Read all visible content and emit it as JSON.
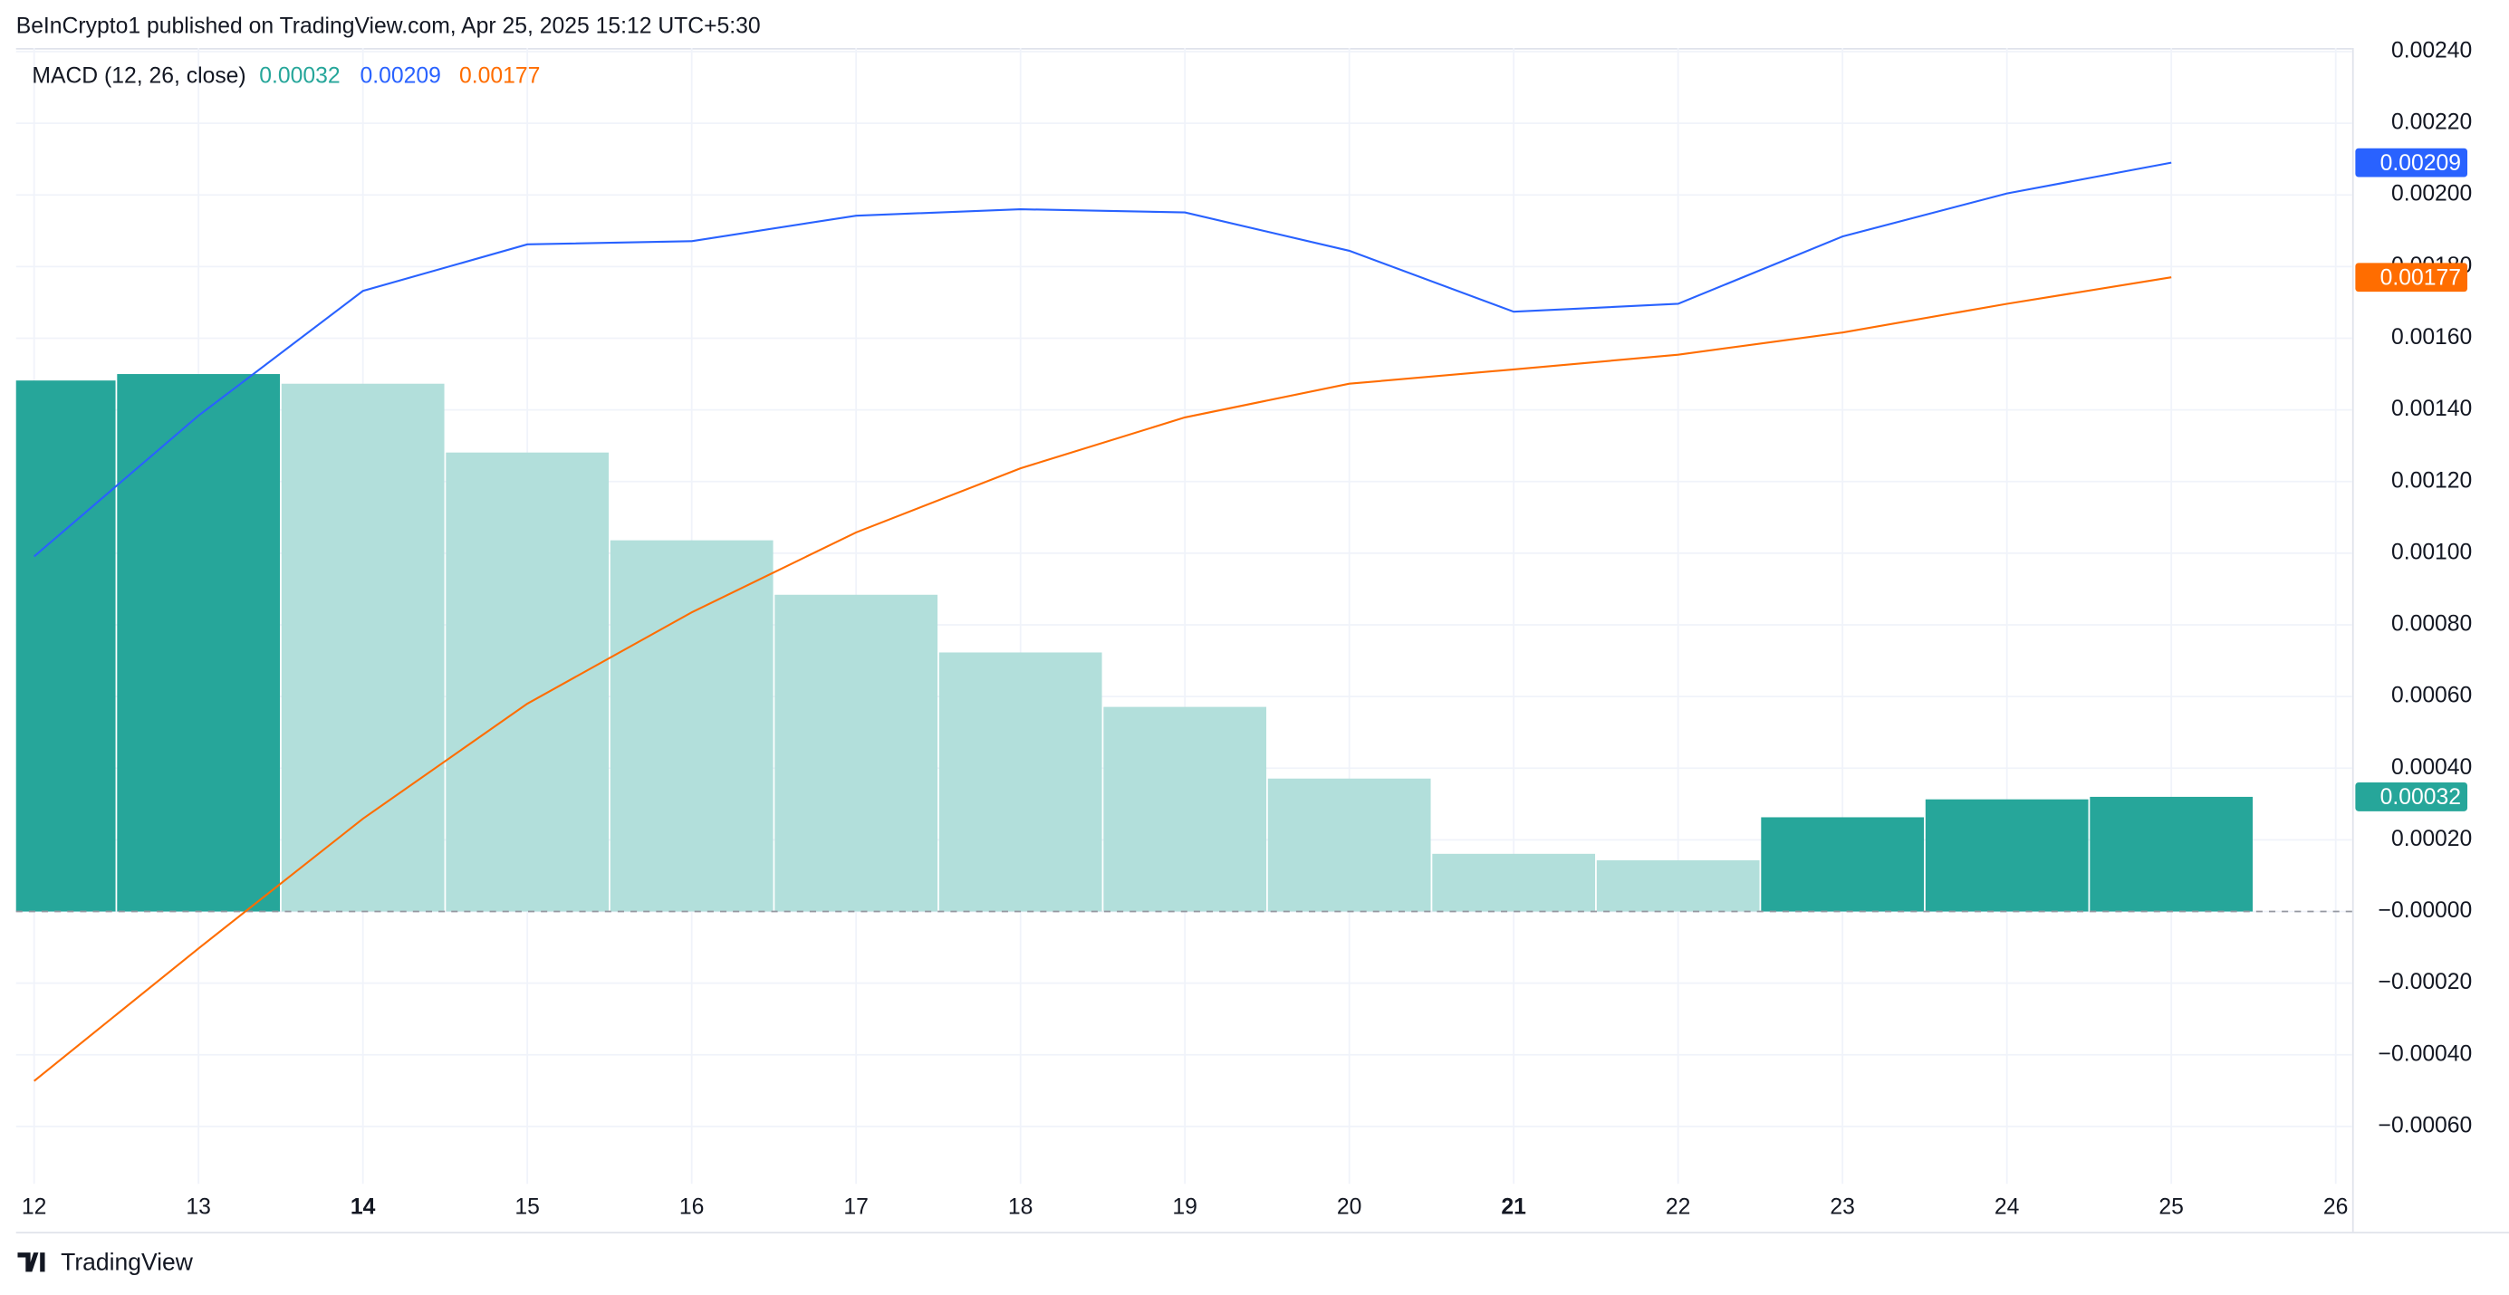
{
  "chart_data": {
    "type": "macd",
    "header": "BeInCrypto1 published on TradingView.com, Apr 25, 2025 15:12 UTC+5:30",
    "title": "MACD (12, 26, close)",
    "brand": "TradingView",
    "x": [
      12,
      13,
      14,
      15,
      16,
      17,
      18,
      19,
      20,
      21,
      22,
      23,
      24,
      25
    ],
    "xlim": [
      11.89,
      26.1
    ],
    "xticks": [
      12,
      13,
      14,
      15,
      16,
      17,
      18,
      19,
      20,
      21,
      22,
      23,
      24,
      25,
      26
    ],
    "bold_xticks": [
      14,
      21
    ],
    "ylim": [
      -0.00076,
      0.00241
    ],
    "yticks": [
      {
        "value": -0.0006,
        "label": "−0.00060"
      },
      {
        "value": -0.0004,
        "label": "−0.00040"
      },
      {
        "value": -0.0002,
        "label": "−0.00020"
      },
      {
        "value": 0,
        "label": "−0.00000"
      },
      {
        "value": 0.0002,
        "label": "0.00020"
      },
      {
        "value": 0.0004,
        "label": "0.00040"
      },
      {
        "value": 0.0006,
        "label": "0.00060"
      },
      {
        "value": 0.0008,
        "label": "0.00080"
      },
      {
        "value": 0.001,
        "label": "0.00100"
      },
      {
        "value": 0.0012,
        "label": "0.00120"
      },
      {
        "value": 0.0014,
        "label": "0.00140"
      },
      {
        "value": 0.0016,
        "label": "0.00160"
      },
      {
        "value": 0.0018,
        "label": "0.00180"
      },
      {
        "value": 0.002,
        "label": "0.00200"
      },
      {
        "value": 0.0022,
        "label": "0.00220"
      },
      {
        "value": 0.0024,
        "label": "0.00240"
      }
    ],
    "grid": true,
    "histogram": {
      "values": [
        0.001482,
        0.0015,
        0.001473,
        0.001281,
        0.001036,
        0.000884,
        0.000723,
        0.000571,
        0.000371,
        0.000161,
        0.000143,
        0.000263,
        0.000313,
        0.00032
      ],
      "colors": [
        "#26a69a",
        "#26a69a",
        "#b2dfdb",
        "#b2dfdb",
        "#b2dfdb",
        "#b2dfdb",
        "#b2dfdb",
        "#b2dfdb",
        "#b2dfdb",
        "#b2dfdb",
        "#b2dfdb",
        "#26a69a",
        "#26a69a",
        "#26a69a"
      ],
      "value_label": "0.00032",
      "color": "#26a69a"
    },
    "macd": {
      "color": "#2962ff",
      "values": [
        0.000991,
        0.001384,
        0.001732,
        0.001862,
        0.001871,
        0.001942,
        0.00196,
        0.001951,
        0.001844,
        0.001674,
        0.001696,
        0.001884,
        0.002004,
        0.00209
      ],
      "value_label": "0.00209"
    },
    "signal": {
      "color": "#ff6d00",
      "values": [
        -0.000473,
        -0.000103,
        0.000259,
        0.00058,
        0.000835,
        0.001058,
        0.001237,
        0.001379,
        0.001473,
        0.001513,
        0.001554,
        0.001616,
        0.001696,
        0.00177
      ],
      "value_label": "0.00177"
    }
  }
}
